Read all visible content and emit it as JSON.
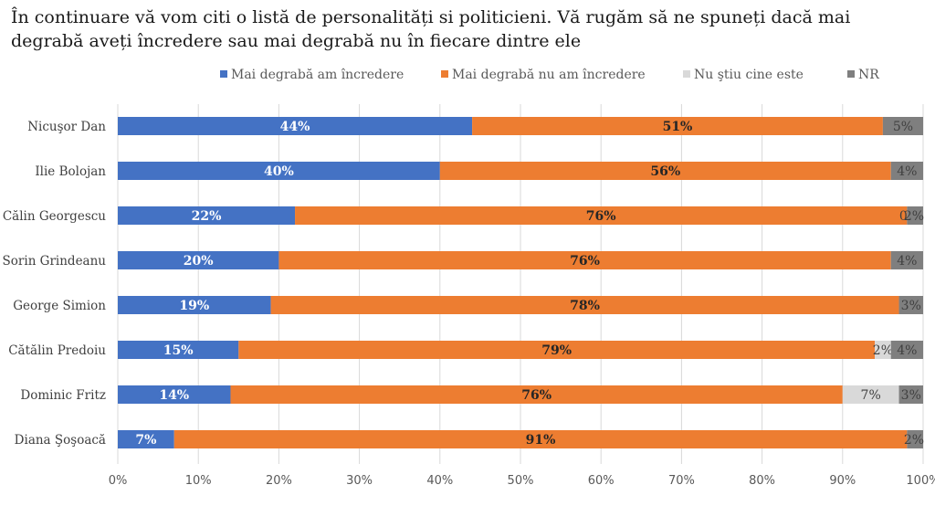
{
  "title": "În continuare vă vom citi o listă de personalități si politicieni. Vă rugăm să ne spuneți dacă mai degrabă aveți încredere sau mai degrabă nu în fiecare dintre ele",
  "chart_data": {
    "type": "bar",
    "orientation": "horizontal",
    "stacked": true,
    "title": "În continuare vă vom citi o listă de personalități si politicieni. Vă rugăm să ne spuneți dacă mai degrabă aveți încredere sau mai degrabă nu în fiecare dintre ele",
    "categories": [
      "Nicuşor Dan",
      "Ilie Bolojan",
      "Călin Georgescu",
      "Sorin Grindeanu",
      "George Simion",
      "Cătălin Predoiu",
      "Dominic Fritz",
      "Diana Şoşoacă"
    ],
    "series": [
      {
        "name": "Mai degrabă am încredere",
        "color": "#4472C4",
        "values": [
          44,
          40,
          22,
          20,
          19,
          15,
          14,
          7
        ],
        "labels": [
          "44%",
          "40%",
          "22%",
          "20%",
          "19%",
          "15%",
          "14%",
          "7%"
        ]
      },
      {
        "name": "Mai degrabă nu am încredere",
        "color": "#ED7D31",
        "values": [
          51,
          56,
          76,
          76,
          78,
          79,
          76,
          91
        ],
        "labels": [
          "51%",
          "56%",
          "76%",
          "76%",
          "78%",
          "79%",
          "76%",
          "91%"
        ]
      },
      {
        "name": "Nu ştiu cine este",
        "color": "#D9D9D9",
        "values": [
          0,
          0,
          0,
          0,
          0,
          2,
          7,
          0
        ],
        "labels": [
          "",
          "",
          "0",
          "",
          "",
          "2%",
          "7%",
          ""
        ]
      },
      {
        "name": "NR",
        "color": "#7F7F7F",
        "values": [
          5,
          4,
          2,
          4,
          3,
          4,
          3,
          2
        ],
        "labels": [
          "5%",
          "4%",
          "2%",
          "4%",
          "3%",
          "4%",
          "3%",
          "2%"
        ]
      }
    ],
    "xlim": [
      0,
      100
    ],
    "xticks": [
      "0%",
      "10%",
      "20%",
      "30%",
      "40%",
      "50%",
      "60%",
      "70%",
      "80%",
      "90%",
      "100%"
    ],
    "legend_position": "top",
    "grid": true
  }
}
